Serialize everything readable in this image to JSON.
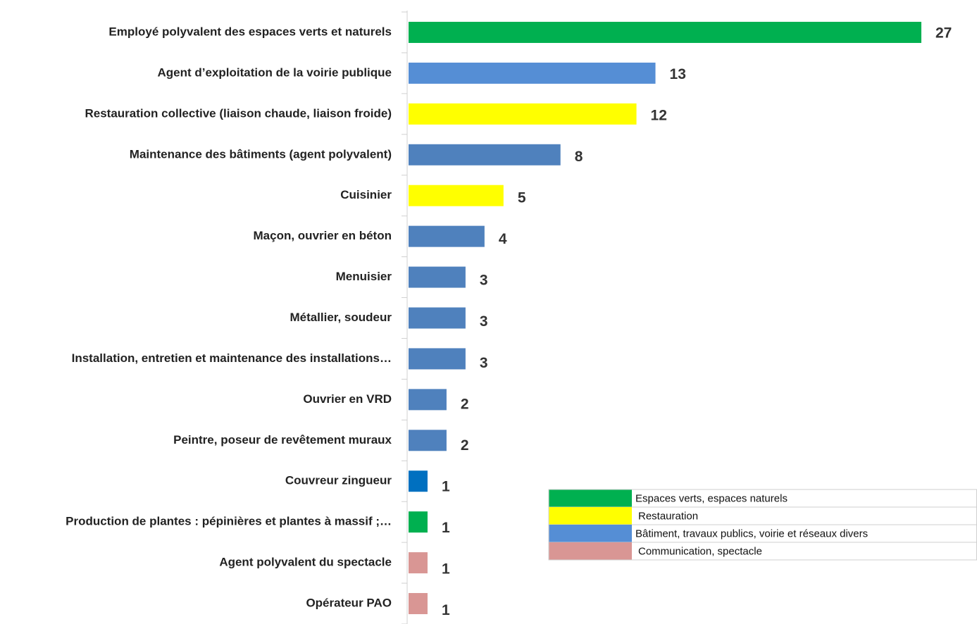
{
  "chart_data": {
    "type": "bar",
    "orientation": "horizontal",
    "categories": [
      "Employé polyvalent des espaces verts et naturels",
      "Agent d’exploitation  de la voirie publique",
      "Restauration collective (liaison chaude, liaison froide)",
      "Maintenance des bâtiments (agent polyvalent)",
      "Cuisinier",
      "Maçon, ouvrier en béton",
      "Menuisier",
      "Métallier, soudeur",
      "Installation, entretien et maintenance des installations…",
      "Ouvrier en VRD",
      "Peintre, poseur de revêtement muraux",
      "Couvreur zingueur",
      "Production de plantes : pépinières et plantes à massif ;…",
      "Agent polyvalent du spectacle",
      "Opérateur PAO"
    ],
    "values": [
      27,
      13,
      12,
      8,
      5,
      4,
      3,
      3,
      3,
      2,
      2,
      1,
      1,
      1,
      1
    ],
    "colors": [
      "#00b050",
      "#558ed5",
      "#ffff00",
      "#4f81bd",
      "#ffff00",
      "#4f81bd",
      "#4f81bd",
      "#4f81bd",
      "#4f81bd",
      "#4f81bd",
      "#4f81bd",
      "#0070c0",
      "#00b050",
      "#d99694",
      "#d99694"
    ],
    "xlim": [
      0,
      27
    ],
    "legend": [
      {
        "name": "Espaces verts, espaces naturels",
        "color": "#00b050"
      },
      {
        "name": "Restauration",
        "color": "#ffff00"
      },
      {
        "name": "Bâtiment, travaux publics, voirie et réseaux divers",
        "color": "#558ed5"
      },
      {
        "name": "Communication, spectacle",
        "color": "#d99694"
      }
    ]
  }
}
